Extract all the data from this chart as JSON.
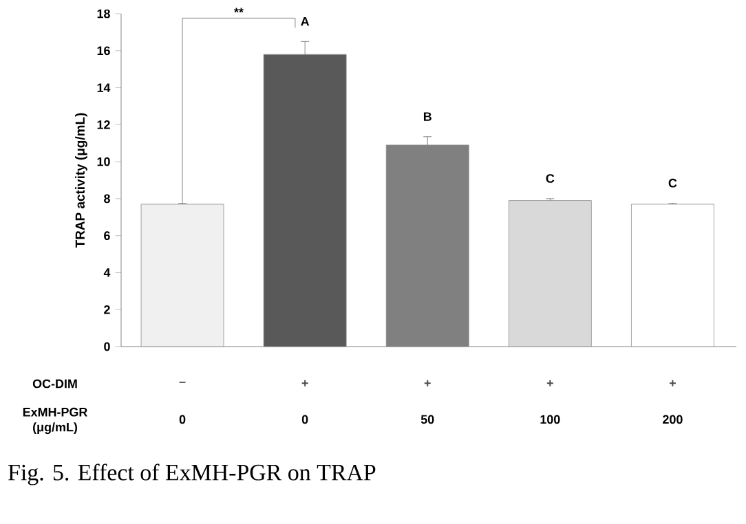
{
  "chart_data": {
    "type": "bar",
    "ylabel": "TRAP activity (μg/mL)",
    "categories": [
      "0",
      "0",
      "50",
      "100",
      "200"
    ],
    "values": [
      7.7,
      15.8,
      10.9,
      7.9,
      7.7
    ],
    "errors": [
      0.05,
      0.7,
      0.45,
      0.1,
      0.05
    ],
    "colors": [
      "#f0f0f0",
      "#595959",
      "#808080",
      "#d9d9d9",
      "#ffffff"
    ],
    "value_labels": [
      null,
      "A",
      "B",
      "C",
      "C"
    ],
    "ylim": [
      0,
      18
    ],
    "yticks": [
      0,
      2,
      4,
      6,
      8,
      10,
      12,
      14,
      16,
      18
    ],
    "annotations": [
      "**",
      "OC-DIM",
      "ExMH-PGR (μg/mL)",
      "–",
      "+",
      "+",
      "+",
      "+",
      "Fig. 5. Effect of ExMH-PGR on TRAP"
    ]
  }
}
